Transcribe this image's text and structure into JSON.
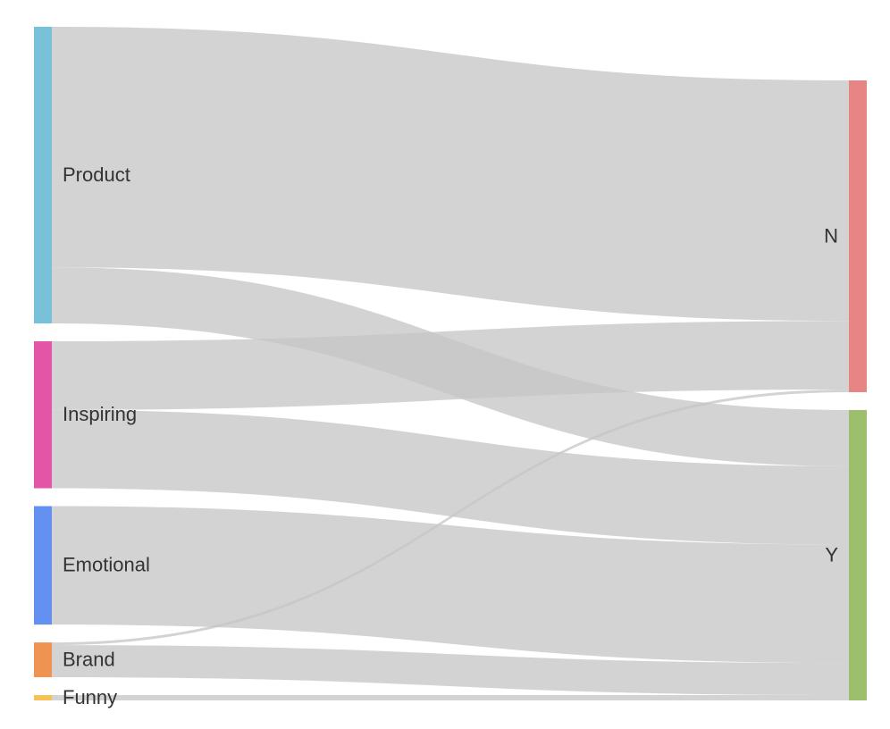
{
  "chart_data": {
    "type": "sankey",
    "nodes": [
      {
        "id": "Product",
        "label": "Product",
        "column": 0,
        "color": "#79C1D9"
      },
      {
        "id": "Inspiring",
        "label": "Inspiring",
        "column": 0,
        "color": "#E356A7"
      },
      {
        "id": "Emotional",
        "label": "Emotional",
        "column": 0,
        "color": "#6490F2"
      },
      {
        "id": "Brand",
        "label": "Brand",
        "column": 0,
        "color": "#EF9352"
      },
      {
        "id": "Funny",
        "label": "Funny",
        "column": 0,
        "color": "#F4C256"
      },
      {
        "id": "N",
        "label": "N",
        "column": 1,
        "color": "#E68583"
      },
      {
        "id": "Y",
        "label": "Y",
        "column": 1,
        "color": "#9CBF6E"
      }
    ],
    "links": [
      {
        "source": "Product",
        "target": "N",
        "value": 270
      },
      {
        "source": "Product",
        "target": "Y",
        "value": 63
      },
      {
        "source": "Inspiring",
        "target": "N",
        "value": 77
      },
      {
        "source": "Inspiring",
        "target": "Y",
        "value": 88
      },
      {
        "source": "Emotional",
        "target": "Y",
        "value": 133
      },
      {
        "source": "Brand",
        "target": "N",
        "value": 3
      },
      {
        "source": "Brand",
        "target": "Y",
        "value": 36
      },
      {
        "source": "Funny",
        "target": "Y",
        "value": 6
      }
    ],
    "link_color": "#C7C7C7"
  }
}
